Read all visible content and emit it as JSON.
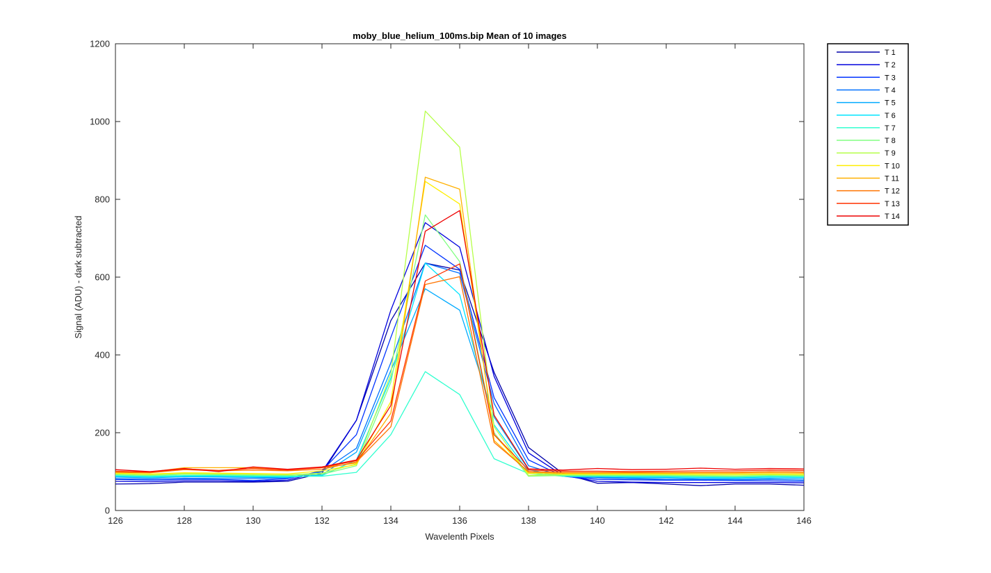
{
  "chart_data": {
    "type": "line",
    "title": "moby_blue_helium_100ms.bip  Mean of 10 images",
    "xlabel": "Wavelenth Pixels",
    "ylabel": "Signal (ADU) - dark subtracted",
    "xlim": [
      126,
      146
    ],
    "ylim": [
      0,
      1200
    ],
    "x_ticks": [
      126,
      128,
      130,
      132,
      134,
      136,
      138,
      140,
      142,
      144,
      146
    ],
    "y_ticks": [
      0,
      200,
      400,
      600,
      800,
      1000,
      1200
    ],
    "grid": false,
    "legend_position": "outside-top-right",
    "x": [
      126,
      127,
      128,
      129,
      130,
      131,
      132,
      133,
      134,
      135,
      136,
      137,
      138,
      139,
      140,
      141,
      142,
      143,
      144,
      145,
      146
    ],
    "series": [
      {
        "name": "T 1",
        "color": "#0000aa",
        "values": [
          68,
          69,
          73,
          73,
          73,
          75,
          96,
          232,
          488,
          636,
          618,
          355,
          162,
          95,
          70,
          72,
          68,
          64,
          68,
          68,
          65
        ]
      },
      {
        "name": "T 2",
        "color": "#0000dd",
        "values": [
          75,
          74,
          76,
          76,
          75,
          78,
          100,
          232,
          515,
          740,
          677,
          345,
          148,
          90,
          75,
          73,
          72,
          72,
          72,
          72,
          71
        ]
      },
      {
        "name": "T 3",
        "color": "#0033ff",
        "values": [
          80,
          78,
          80,
          80,
          77,
          82,
          102,
          195,
          445,
          682,
          620,
          290,
          130,
          88,
          80,
          79,
          78,
          78,
          77,
          76,
          75
        ]
      },
      {
        "name": "T 4",
        "color": "#0070ff",
        "values": [
          82,
          81,
          83,
          82,
          82,
          84,
          100,
          160,
          380,
          636,
          610,
          275,
          115,
          88,
          84,
          82,
          80,
          80,
          79,
          80,
          78
        ]
      },
      {
        "name": "T 5",
        "color": "#00aaff",
        "values": [
          86,
          84,
          87,
          86,
          85,
          85,
          92,
          150,
          360,
          570,
          515,
          240,
          105,
          88,
          86,
          84,
          84,
          82,
          82,
          83,
          82
        ]
      },
      {
        "name": "T 6",
        "color": "#00e4ff",
        "values": [
          88,
          86,
          88,
          88,
          87,
          86,
          90,
          130,
          340,
          636,
          555,
          220,
          100,
          88,
          88,
          86,
          86,
          85,
          84,
          86,
          85
        ]
      },
      {
        "name": "T 7",
        "color": "#30ffcf",
        "values": [
          90,
          88,
          90,
          90,
          89,
          88,
          88,
          98,
          195,
          357,
          298,
          133,
          95,
          88,
          88,
          88,
          88,
          87,
          86,
          88,
          87
        ]
      },
      {
        "name": "T 8",
        "color": "#80ff80",
        "values": [
          92,
          90,
          93,
          92,
          91,
          90,
          93,
          115,
          330,
          760,
          640,
          200,
          88,
          90,
          90,
          90,
          90,
          89,
          88,
          90,
          89
        ]
      },
      {
        "name": "T 9",
        "color": "#b6ff49",
        "values": [
          94,
          92,
          95,
          94,
          93,
          92,
          96,
          120,
          350,
          1027,
          934,
          215,
          90,
          92,
          92,
          92,
          92,
          91,
          91,
          92,
          91
        ]
      },
      {
        "name": "T 10",
        "color": "#ffee00",
        "values": [
          96,
          94,
          97,
          96,
          95,
          94,
          102,
          118,
          280,
          846,
          788,
          195,
          95,
          94,
          94,
          94,
          94,
          93,
          93,
          94,
          93
        ]
      },
      {
        "name": "T 11",
        "color": "#ffb000",
        "values": [
          100,
          99,
          110,
          110,
          110,
          105,
          110,
          122,
          250,
          857,
          826,
          180,
          98,
          96,
          96,
          96,
          96,
          96,
          96,
          97,
          96
        ]
      },
      {
        "name": "T 12",
        "color": "#ff7400",
        "values": [
          98,
          97,
          105,
          102,
          104,
          102,
          106,
          125,
          215,
          581,
          601,
          175,
          100,
          98,
          98,
          98,
          98,
          98,
          98,
          100,
          99
        ]
      },
      {
        "name": "T 13",
        "color": "#ff3200",
        "values": [
          101,
          99,
          107,
          103,
          108,
          104,
          110,
          128,
          230,
          590,
          634,
          195,
          104,
          101,
          101,
          100,
          101,
          102,
          102,
          104,
          103
        ]
      },
      {
        "name": "T 14",
        "color": "#ee0000",
        "values": [
          105,
          100,
          108,
          100,
          112,
          106,
          112,
          130,
          270,
          718,
          771,
          245,
          107,
          104,
          108,
          105,
          106,
          109,
          106,
          108,
          107
        ]
      }
    ]
  }
}
